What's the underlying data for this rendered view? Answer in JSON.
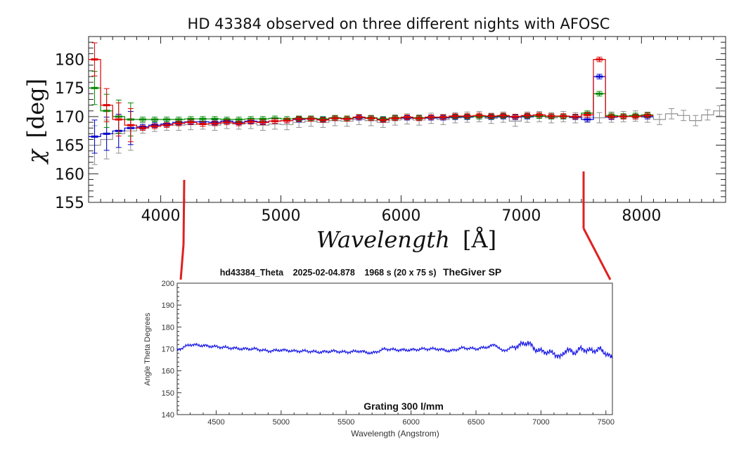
{
  "chart_data": [
    {
      "type": "line",
      "title": "HD 43384 observed on three different nights with AFOSC",
      "ylabel_symbol": "χ",
      "ylabel_unit": "[deg]",
      "xlabel_main": "Wavelength",
      "xlabel_unit": "[Å]",
      "xlim": [
        3400,
        8700
      ],
      "ylim": [
        155,
        184
      ],
      "x_ticks": [
        4000,
        5000,
        6000,
        7000,
        8000
      ],
      "y_ticks": [
        155,
        160,
        165,
        170,
        175,
        180
      ],
      "grid": false,
      "series": [
        {
          "color": "#909090",
          "x": [
            3450,
            3550,
            3650,
            3750,
            3850,
            3950,
            4050,
            4150,
            4250,
            4350,
            4450,
            4550,
            4650,
            4750,
            4850,
            4950,
            5050,
            5150,
            5250,
            5350,
            5450,
            5550,
            5650,
            5750,
            5850,
            5950,
            6050,
            6150,
            6250,
            6350,
            6450,
            6550,
            6650,
            6750,
            6850,
            6950,
            7050,
            7150,
            7250,
            7350,
            7450,
            7550,
            7650,
            7750,
            7850,
            7950,
            8050,
            8150,
            8250,
            8350,
            8450,
            8550,
            8650
          ],
          "y": [
            165,
            166,
            167,
            167.5,
            168,
            168.3,
            168.5,
            168.5,
            168.6,
            168.7,
            168.5,
            168.8,
            168.7,
            168.8,
            168.5,
            168.7,
            168.6,
            169,
            169.2,
            169,
            169.3,
            169.2,
            169.5,
            169.3,
            169,
            169.4,
            169.6,
            169.4,
            169.7,
            169.5,
            169.8,
            169.9,
            170,
            169.7,
            169.9,
            169.2,
            169.9,
            170,
            169.8,
            170,
            169.8,
            169.9,
            169.8,
            169.9,
            170,
            170.1,
            169.9,
            169.5,
            170.5,
            170.2,
            169.3,
            170.3,
            171
          ]
        },
        {
          "color": "#0000cc",
          "x": [
            3450,
            3550,
            3650,
            3750,
            3850,
            3950,
            4050,
            4150,
            4250,
            4350,
            4450,
            4550,
            4650,
            4750,
            4850,
            4950,
            5050,
            5150,
            5250,
            5350,
            5450,
            5550,
            5650,
            5750,
            5850,
            5950,
            6050,
            6150,
            6250,
            6350,
            6450,
            6550,
            6650,
            6750,
            6850,
            6950,
            7050,
            7150,
            7250,
            7350,
            7450,
            7550,
            7650,
            7750,
            7850,
            7950,
            8050
          ],
          "y": [
            166.5,
            167,
            167.5,
            168,
            168.2,
            168.5,
            168.7,
            169,
            169.1,
            169.1,
            169,
            169.2,
            169,
            169.2,
            169.1,
            169.2,
            169.3,
            169.5,
            169.6,
            169.5,
            169.7,
            169.6,
            169.8,
            169.7,
            169.5,
            169.7,
            169.8,
            169.7,
            169.8,
            169.8,
            169.9,
            169.9,
            170,
            169.9,
            170,
            169.9,
            170,
            170.1,
            170,
            170,
            169.9,
            169.5,
            177,
            169.9,
            170,
            170,
            170
          ]
        },
        {
          "color": "#008800",
          "x": [
            3450,
            3550,
            3650,
            3750,
            3850,
            3950,
            4050,
            4150,
            4250,
            4350,
            4450,
            4550,
            4650,
            4750,
            4850,
            4950,
            5050,
            5150,
            5250,
            5350,
            5450,
            5550,
            5650,
            5750,
            5850,
            5950,
            6050,
            6150,
            6250,
            6350,
            6450,
            6550,
            6650,
            6750,
            6850,
            6950,
            7050,
            7150,
            7250,
            7350,
            7450,
            7550,
            7650,
            7750,
            7850,
            7950,
            8050
          ],
          "y": [
            175,
            171,
            170,
            169.5,
            169.5,
            169.5,
            169.5,
            169.5,
            169.6,
            169.6,
            169.6,
            169.5,
            169.5,
            169.6,
            169.6,
            169.7,
            169.6,
            169.7,
            169.7,
            169.6,
            169.8,
            169.7,
            169.9,
            169.8,
            169.6,
            169.8,
            169.9,
            169.8,
            169.9,
            169.9,
            170,
            170,
            170,
            170,
            170.1,
            170,
            170.1,
            170.1,
            170,
            170,
            170,
            170.6,
            174,
            170.2,
            170.1,
            170.2,
            170.3
          ]
        },
        {
          "color": "#dd0000",
          "x": [
            3450,
            3550,
            3650,
            3750,
            3850,
            3950,
            4050,
            4150,
            4250,
            4350,
            4450,
            4550,
            4650,
            4750,
            4850,
            4950,
            5050,
            5150,
            5250,
            5350,
            5450,
            5550,
            5650,
            5750,
            5850,
            5950,
            6050,
            6150,
            6250,
            6350,
            6450,
            6550,
            6650,
            6750,
            6850,
            6950,
            7050,
            7150,
            7250,
            7350,
            7450,
            7550,
            7650,
            7750,
            7850,
            7950,
            8050
          ],
          "y": [
            180,
            172,
            169.5,
            168.5,
            168,
            168.3,
            168.5,
            168.8,
            169,
            168.7,
            168.8,
            169,
            168.8,
            169.1,
            169,
            169.2,
            169.3,
            169.6,
            169.6,
            169.4,
            169.7,
            169.6,
            169.9,
            169.7,
            169.4,
            169.7,
            169.9,
            169.7,
            169.9,
            169.9,
            170.1,
            170.1,
            170.2,
            170.1,
            170.2,
            170,
            170.2,
            170.3,
            170.1,
            170.1,
            170,
            170.3,
            180,
            170,
            170,
            170,
            170.2
          ]
        }
      ]
    },
    {
      "type": "line",
      "title_object": "hd43384_Theta",
      "title_date": "2025-02-04.878",
      "title_exposure": "1968 s (20 x 75 s)",
      "title_software": "TheGiver SP",
      "annotation": "Grating 300 l/mm",
      "xlabel": "Wavelength (Angstrom)",
      "ylabel": "Angle Theta Degrees",
      "xlim": [
        4200,
        7550
      ],
      "ylim": [
        140,
        200
      ],
      "x_ticks": [
        4500,
        5000,
        5500,
        6000,
        6500,
        7000,
        7500
      ],
      "y_ticks": [
        140,
        150,
        160,
        170,
        180,
        190,
        200
      ],
      "series": [
        {
          "color": "#1f1fe6",
          "x": [
            4200,
            4260,
            4300,
            4400,
            4500,
            4600,
            4700,
            4800,
            4900,
            5000,
            5100,
            5200,
            5300,
            5400,
            5500,
            5600,
            5700,
            5800,
            5900,
            6000,
            6100,
            6200,
            6300,
            6400,
            6500,
            6600,
            6650,
            6700,
            6800,
            6900,
            6950,
            7000,
            7100,
            7150,
            7200,
            7250,
            7300,
            7400,
            7450,
            7500,
            7550
          ],
          "y": [
            169.5,
            171,
            172,
            171.5,
            171,
            170.5,
            170,
            170,
            169,
            169.5,
            169,
            169,
            168.5,
            169,
            168.5,
            169,
            168,
            170,
            169.5,
            169.5,
            170,
            170,
            169,
            170.5,
            170,
            171,
            172,
            169,
            171,
            173,
            170,
            169,
            168,
            166,
            170,
            168,
            170,
            169,
            170,
            168,
            165.5
          ]
        }
      ]
    }
  ]
}
